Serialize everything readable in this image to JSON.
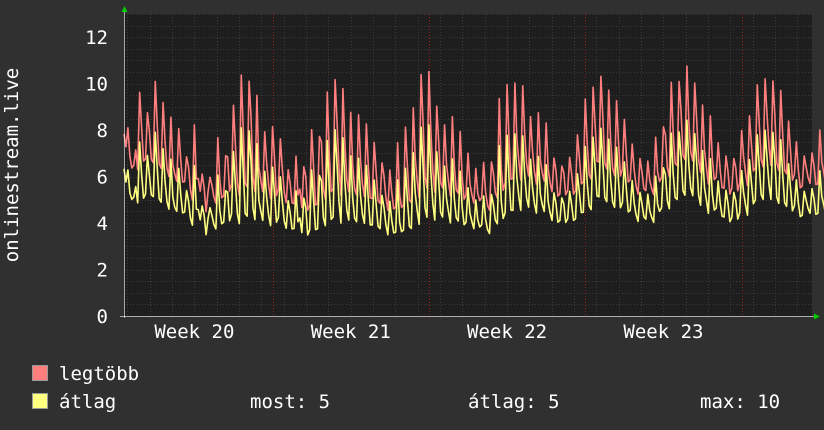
{
  "chart_data": {
    "type": "line",
    "ylabel": "onlinestream.live",
    "ylim": [
      0,
      13
    ],
    "y_ticks": [
      0,
      2,
      4,
      6,
      8,
      10,
      12
    ],
    "x_tick_labels": [
      "Week 20",
      "Week 21",
      "Week 22",
      "Week 23"
    ],
    "x_range_weeks": [
      19.55,
      23.95
    ],
    "x_tick_positions_weeks": [
      20,
      21,
      22,
      23
    ],
    "grid": true,
    "legend_position": "bottom-left",
    "series": [
      {
        "name": "legtöbb",
        "color": "#ff7f7f",
        "x_start_week": 19.55,
        "step_weeks": 0.0125,
        "values": [
          7.84,
          7.28,
          8.1,
          6.88,
          6.37,
          6.49,
          7.15,
          6.3,
          9.63,
          8.12,
          6.67,
          6.76,
          8.75,
          7.94,
          6.74,
          6.6,
          10.1,
          8.23,
          6.55,
          6.36,
          9.19,
          7.49,
          6.37,
          6.01,
          8.56,
          6.52,
          6.1,
          5.8,
          8.07,
          6.75,
          5.77,
          5.78,
          6.85,
          6.43,
          5.43,
          4.99,
          8.23,
          5.91,
          5.91,
          5.37,
          6.11,
          5.52,
          4.49,
          5.35,
          5.97,
          5.63,
          5.12,
          4.86,
          7.68,
          5.85,
          5.09,
          5.16,
          6.9,
          6.85,
          5.38,
          5.68,
          9.07,
          7.37,
          5.73,
          5.18,
          10.37,
          8.04,
          5.72,
          5.55,
          10.11,
          8.56,
          5.95,
          5.35,
          9.5,
          6.41,
          5.82,
          5.35,
          7.93,
          6.57,
          5.63,
          5.05,
          8.15,
          6.8,
          5.18,
          5.48,
          7.63,
          6.34,
          5.32,
          4.88,
          6.3,
          5.71,
          4.87,
          4.84,
          6.88,
          5.21,
          5.46,
          4.67,
          6.42,
          6.01,
          4.56,
          4.78,
          8.02,
          6.41,
          4.78,
          4.84,
          7.73,
          7.49,
          5.45,
          5.03,
          9.64,
          7.04,
          5.35,
          5.48,
          10.18,
          8.36,
          6.36,
          5.19,
          9.79,
          7.44,
          5.88,
          5.35,
          8.77,
          6.53,
          5.45,
          5.21,
          8.66,
          6.72,
          5.67,
          5.14,
          8.27,
          6.44,
          5.08,
          5.06,
          7.47,
          6.22,
          4.96,
          4.85,
          6.59,
          6.05,
          5.11,
          4.56,
          6.28,
          5.31,
          4.61,
          4.69,
          7.46,
          5.23,
          4.67,
          4.78,
          8.13,
          6.45,
          4.99,
          4.89,
          8.96,
          6.81,
          5.84,
          5.09,
          10.39,
          8.36,
          6.01,
          5.5,
          10.52,
          7.96,
          6.25,
          5.33,
          9.03,
          7.52,
          5.74,
          5.52,
          8.23,
          6.53,
          5.8,
          5.17,
          8.58,
          6.47,
          5.42,
          5.29,
          7.94,
          6.02,
          5.03,
          5.21,
          7.01,
          5.69,
          5.22,
          4.86,
          6.35,
          5.27,
          4.97,
          5.09,
          6.61,
          5.34,
          4.76,
          4.56,
          6.63,
          6.15,
          5.31,
          5.08,
          9.36,
          6.36,
          5.41,
          5.73,
          9.96,
          7.56,
          5.89,
          5.92,
          10.03,
          7.64,
          6.66,
          5.85,
          9.91,
          7.85,
          6.56,
          6.03,
          8.58,
          7.11,
          6.22,
          5.67,
          8.75,
          6.73,
          6.14,
          5.81,
          8.31,
          6.33,
          5.73,
          5.35,
          6.8,
          6.26,
          5.16,
          5.26,
          6.45,
          6.18,
          5.22,
          5.4,
          6.83,
          6.14,
          5.25,
          5.41,
          7.8,
          6.8,
          5.69,
          5.77,
          9.34,
          7.41,
          6.09,
          5.9,
          9.85,
          8.29,
          6.66,
          6.63,
          10.32,
          8.53,
          6.59,
          6.33,
          9.72,
          7.52,
          6.35,
          6.04,
          9.27,
          7.47,
          6.03,
          6.31,
          8.46,
          6.98,
          5.77,
          5.87,
          7.4,
          6.3,
          5.61,
          5.25,
          6.78,
          6.2,
          5.48,
          5.4,
          6.67,
          5.83,
          5.47,
          5.23,
          7.7,
          6.2,
          5.79,
          5.96,
          8.14,
          7.81,
          6.38,
          6.0,
          10.06,
          7.83,
          6.57,
          6.48,
          10.1,
          8.82,
          6.93,
          6.73,
          10.76,
          8.31,
          7.04,
          6.68,
          10.03,
          8.44,
          6.72,
          6.18,
          9.08,
          7.13,
          6.37,
          5.68,
          8.62,
          6.77,
          5.87,
          5.97,
          7.46,
          6.29,
          5.53,
          5.5,
          6.89,
          6.23,
          5.25,
          5.5,
          6.78,
          6.38,
          5.39,
          5.72,
          7.99,
          6.86,
          6.16,
          5.61,
          8.62,
          7.4,
          6.24,
          6.38,
          9.96,
          8.29,
          6.72,
          6.43,
          10.21,
          8.67,
          7.29,
          6.49,
          10.12,
          8.64,
          6.59,
          6.27,
          9.71,
          7.81,
          6.28,
          6.12,
          8.39,
          7.11,
          5.85,
          6.09,
          7.5,
          6.29,
          5.52,
          5.6,
          6.89,
          6.41,
          5.96,
          5.71,
          7.02,
          6.49,
          5.66,
          5.69,
          8.01,
          6.65,
          6.18,
          5.67,
          9.69,
          7.16,
          6.59,
          6.38,
          11.02,
          8.88,
          7.22,
          6.93,
          11.48,
          8.85,
          7.39,
          6.48,
          10.4,
          8.27,
          6.61,
          6.49,
          9.26,
          7.55,
          6.3,
          6.44,
          8.44,
          6.68
        ]
      },
      {
        "name": "átlag",
        "color": "#ffff80",
        "x_start_week": 19.55,
        "step_weeks": 0.0125,
        "values": [
          6.34,
          5.77,
          6.29,
          5.3,
          5.02,
          5.12,
          5.57,
          4.87,
          7.49,
          6.11,
          5.07,
          5.26,
          6.91,
          6.05,
          5.21,
          5.14,
          7.91,
          6.38,
          5.05,
          4.9,
          7.2,
          5.8,
          4.92,
          4.6,
          6.75,
          5.11,
          4.67,
          4.51,
          6.36,
          5.25,
          4.44,
          4.47,
          5.4,
          4.96,
          4.21,
          3.91,
          6.47,
          4.6,
          4.58,
          4.14,
          4.74,
          4.33,
          3.5,
          4.2,
          4.66,
          4.33,
          3.94,
          3.75,
          6.06,
          4.56,
          3.97,
          4.04,
          5.39,
          5.33,
          4.1,
          4.39,
          7.08,
          5.71,
          4.41,
          3.98,
          8.1,
          6.29,
          4.41,
          4.3,
          7.97,
          6.67,
          4.64,
          4.15,
          7.42,
          4.99,
          4.52,
          4.12,
          6.23,
          5.1,
          4.33,
          3.89,
          6.41,
          5.3,
          4.04,
          4.25,
          5.99,
          4.92,
          4.09,
          3.78,
          4.96,
          4.45,
          3.75,
          3.77,
          5.39,
          4.06,
          4.22,
          3.59,
          5.07,
          4.66,
          3.49,
          3.71,
          6.29,
          4.97,
          3.72,
          3.75,
          6.05,
          5.82,
          4.24,
          3.89,
          7.55,
          5.49,
          4.16,
          4.26,
          8.02,
          6.53,
          4.91,
          4.0,
          7.67,
          5.77,
          4.56,
          4.13,
          6.89,
          5.09,
          4.21,
          4.06,
          6.79,
          5.19,
          4.37,
          3.99,
          6.48,
          5.01,
          3.92,
          3.92,
          5.85,
          4.81,
          3.86,
          3.76,
          5.19,
          4.68,
          3.93,
          3.5,
          4.94,
          4.11,
          3.58,
          3.61,
          5.86,
          4.05,
          3.63,
          3.7,
          6.36,
          5.0,
          3.86,
          3.77,
          7.03,
          5.29,
          4.54,
          3.95,
          8.13,
          6.51,
          4.67,
          4.25,
          8.23,
          6.19,
          4.85,
          4.13,
          7.07,
          5.83,
          4.47,
          4.26,
          6.45,
          5.05,
          4.5,
          4.01,
          6.76,
          5.04,
          4.23,
          4.09,
          6.23,
          4.69,
          3.93,
          4.04,
          5.52,
          4.43,
          4.06,
          3.76,
          4.99,
          4.14,
          3.83,
          3.93,
          5.17,
          4.16,
          3.72,
          3.55,
          5.23,
          4.79,
          4.12,
          3.97,
          7.33,
          4.95,
          4.2,
          4.45,
          7.78,
          5.88,
          4.56,
          4.55,
          7.84,
          5.97,
          5.14,
          4.55,
          7.75,
          6.09,
          5.08,
          4.69,
          6.75,
          5.52,
          4.84,
          4.43,
          6.87,
          5.25,
          4.79,
          4.5,
          6.51,
          4.93,
          4.45,
          4.12,
          5.3,
          4.85,
          4.04,
          4.11,
          5.08,
          4.83,
          4.03,
          4.19,
          5.37,
          4.8,
          4.12,
          4.18,
          6.12,
          5.3,
          4.45,
          4.47,
          7.3,
          5.73,
          4.75,
          4.58,
          7.7,
          6.43,
          5.17,
          5.13,
          8.08,
          6.64,
          5.11,
          4.92,
          7.61,
          5.85,
          4.91,
          4.68,
          7.26,
          5.8,
          4.66,
          4.89,
          6.63,
          5.47,
          4.48,
          4.55,
          5.83,
          4.88,
          4.36,
          4.07,
          5.32,
          4.83,
          4.27,
          4.17,
          5.24,
          4.54,
          4.24,
          4.03,
          6.02,
          4.81,
          4.51,
          4.65,
          6.38,
          6.09,
          4.95,
          4.62,
          7.87,
          6.09,
          5.1,
          5.02,
          7.92,
          6.88,
          5.39,
          5.2,
          8.43,
          6.48,
          5.49,
          5.18,
          7.85,
          6.6,
          5.2,
          4.77,
          7.12,
          5.52,
          4.98,
          4.42,
          6.77,
          5.25,
          4.56,
          4.64,
          5.81,
          4.87,
          4.3,
          4.26,
          5.41,
          4.85,
          4.06,
          4.24,
          5.32,
          4.97,
          4.17,
          4.45,
          6.26,
          5.31,
          4.78,
          4.34,
          6.73,
          5.75,
          4.83,
          5.0,
          7.8,
          6.47,
          5.23,
          5.02,
          8.0,
          6.79,
          5.66,
          5.02,
          7.9,
          6.72,
          5.11,
          4.85,
          7.59,
          6.09,
          4.88,
          4.72,
          6.55,
          5.53,
          4.53,
          4.75,
          5.86,
          4.87,
          4.28,
          4.34,
          5.37,
          4.99,
          4.63,
          4.42,
          5.48,
          5.06,
          4.38,
          4.42,
          6.25,
          5.16,
          4.8,
          4.35,
          7.61,
          5.52,
          5.17,
          5.0,
          8.68,
          6.91,
          5.66,
          5.38,
          9.57,
          7.16,
          5.98,
          5.13,
          8.46,
          6.6,
          5.31,
          5.04,
          7.54,
          5.88,
          4.87,
          4.99,
          6.87,
          5.3
        ]
      }
    ]
  },
  "stats": {
    "now_label": "most:",
    "now_value": "5",
    "avg_label": "átlag:",
    "avg_value": "5",
    "max_label": "max:",
    "max_value": "10"
  },
  "colors": {
    "background": "#303030",
    "plot_background": "#1e1e1e",
    "grid": "#3a3a3a",
    "week_marker": "#a02020",
    "axis_arrow": "#00cc00"
  }
}
